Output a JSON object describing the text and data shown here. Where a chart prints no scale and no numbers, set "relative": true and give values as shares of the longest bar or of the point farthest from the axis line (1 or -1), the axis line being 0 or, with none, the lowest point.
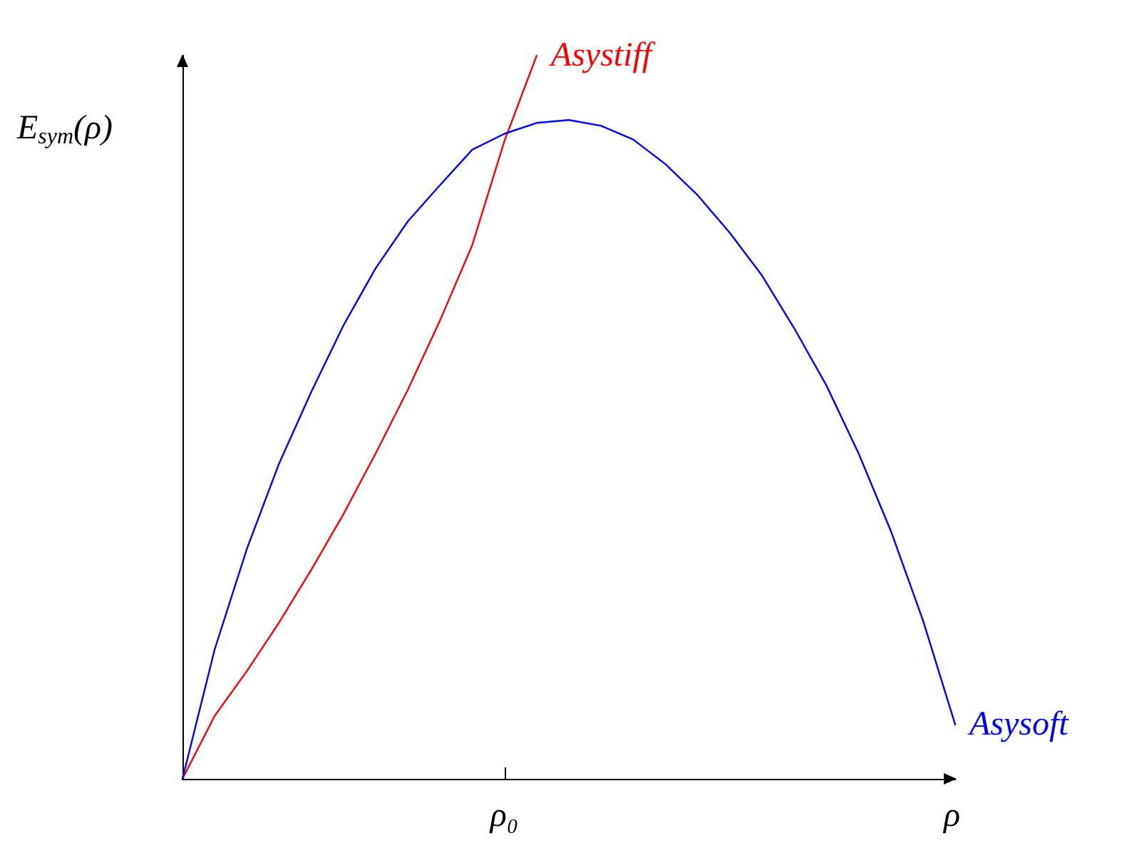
{
  "chart_data": {
    "type": "line",
    "relative": true,
    "xlabel": "ρ",
    "ylabel": "E$_{sym}$(ρ)",
    "annotations": [
      "ρ₀"
    ],
    "categories": [
      null,
      null,
      null,
      null,
      null,
      null,
      null,
      null,
      null,
      null,
      null,
      null,
      null,
      null,
      null,
      null,
      null,
      null,
      null,
      null,
      null,
      null,
      null,
      null,
      null
    ],
    "legend": false,
    "grid": false,
    "marker": "none",
    "line_style": "solid",
    "series": [
      {
        "name": "Asystiff",
        "color": "#ff0000",
        "values": [
          0,
          0.087,
          0.149,
          0.216,
          0.289,
          0.366,
          0.45,
          0.538,
          0.634,
          0.738,
          0.882,
          1,
          null,
          null,
          null,
          null,
          null,
          null,
          null,
          null,
          null,
          null,
          null,
          null,
          null
        ]
      },
      {
        "name": "Asysoft",
        "color": "#0000ff",
        "values": [
          0,
          0.179,
          0.318,
          0.436,
          0.535,
          0.627,
          0.706,
          0.771,
          0.821,
          0.87,
          0.892,
          0.907,
          0.911,
          0.903,
          0.884,
          0.85,
          0.807,
          0.755,
          0.696,
          0.623,
          0.544,
          0.45,
          0.343,
          0.219,
          0.075
        ]
      }
    ]
  }
}
